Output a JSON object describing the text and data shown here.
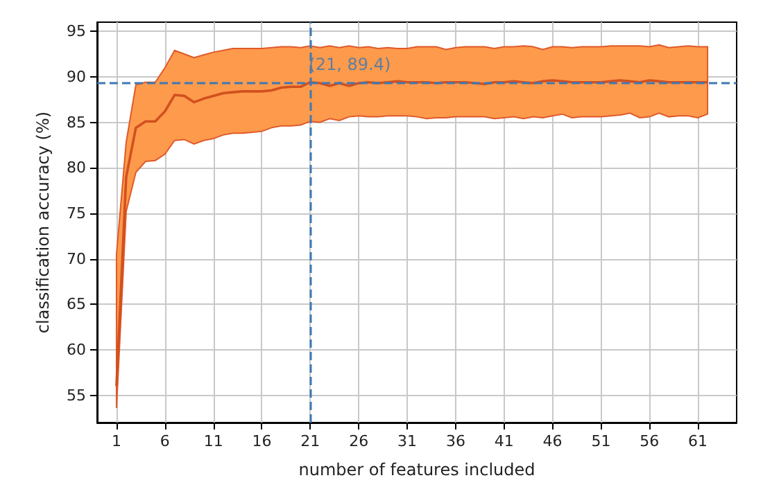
{
  "chart_data": {
    "type": "line",
    "xlabel": "number of features included",
    "ylabel": "classification accuracy (%)",
    "x": [
      1,
      2,
      3,
      4,
      5,
      6,
      7,
      8,
      9,
      10,
      11,
      12,
      13,
      14,
      15,
      16,
      17,
      18,
      19,
      20,
      21,
      22,
      23,
      24,
      25,
      26,
      27,
      28,
      29,
      30,
      31,
      32,
      33,
      34,
      35,
      36,
      37,
      38,
      39,
      40,
      41,
      42,
      43,
      44,
      45,
      46,
      47,
      48,
      49,
      50,
      51,
      52,
      53,
      54,
      55,
      56,
      57,
      58,
      59,
      60,
      61,
      62
    ],
    "series": [
      {
        "color": "#d2501e",
        "values": [
          56,
          79,
          84.4,
          85.1,
          85.1,
          86.2,
          88.0,
          87.9,
          87.2,
          87.6,
          87.9,
          88.2,
          88.3,
          88.4,
          88.4,
          88.4,
          88.5,
          88.8,
          88.9,
          88.9,
          89.4,
          89.3,
          89.0,
          89.3,
          89.0,
          89.3,
          89.4,
          89.3,
          89.4,
          89.5,
          89.4,
          89.4,
          89.4,
          89.3,
          89.4,
          89.4,
          89.4,
          89.3,
          89.2,
          89.4,
          89.4,
          89.5,
          89.4,
          89.3,
          89.5,
          89.6,
          89.5,
          89.4,
          89.4,
          89.4,
          89.4,
          89.5,
          89.6,
          89.5,
          89.4,
          89.6,
          89.5,
          89.4,
          89.4,
          89.4,
          89.4,
          89.4
        ],
        "upper": [
          70.5,
          82.8,
          89.1,
          89.4,
          89.4,
          91.0,
          92.9,
          92.5,
          92.1,
          92.4,
          92.7,
          92.9,
          93.1,
          93.1,
          93.1,
          93.1,
          93.2,
          93.3,
          93.3,
          93.2,
          93.4,
          93.2,
          93.4,
          93.2,
          93.4,
          93.2,
          93.3,
          93.1,
          93.2,
          93.1,
          93.1,
          93.3,
          93.3,
          93.3,
          93.0,
          93.2,
          93.3,
          93.3,
          93.3,
          93.1,
          93.3,
          93.3,
          93.4,
          93.3,
          93.0,
          93.3,
          93.3,
          93.2,
          93.3,
          93.3,
          93.3,
          93.4,
          93.4,
          93.4,
          93.4,
          93.3,
          93.5,
          93.2,
          93.3,
          93.4,
          93.3,
          93.3
        ],
        "lower": [
          53.6,
          75.2,
          79.5,
          80.7,
          80.8,
          81.5,
          83.0,
          83.1,
          82.6,
          83.0,
          83.2,
          83.6,
          83.8,
          83.8,
          83.9,
          84.0,
          84.4,
          84.6,
          84.6,
          84.7,
          85.1,
          85.0,
          85.4,
          85.2,
          85.6,
          85.7,
          85.6,
          85.6,
          85.7,
          85.7,
          85.7,
          85.6,
          85.4,
          85.5,
          85.5,
          85.6,
          85.6,
          85.6,
          85.6,
          85.4,
          85.5,
          85.6,
          85.4,
          85.6,
          85.5,
          85.7,
          85.9,
          85.5,
          85.6,
          85.6,
          85.6,
          85.7,
          85.8,
          86.0,
          85.5,
          85.6,
          86.0,
          85.6,
          85.7,
          85.7,
          85.5,
          85.9
        ]
      }
    ],
    "xlim": [
      -1,
      65
    ],
    "xticks": [
      1,
      6,
      11,
      16,
      21,
      26,
      31,
      36,
      41,
      46,
      51,
      56,
      61
    ],
    "ylim": [
      52,
      96
    ],
    "yticks": [
      55,
      60,
      65,
      70,
      75,
      80,
      85,
      90,
      95
    ],
    "grid": true,
    "marker": "none",
    "ref_lines": [
      {
        "axis": "x",
        "value": 21,
        "color": "#3d78b4",
        "line_style": "dashed"
      },
      {
        "axis": "y",
        "value": 89.4,
        "color": "#3d78b4",
        "line_style": "dashed"
      }
    ],
    "annotations": [
      {
        "text": "(21, 89.4)",
        "x": 21,
        "y": 89.4
      }
    ]
  }
}
